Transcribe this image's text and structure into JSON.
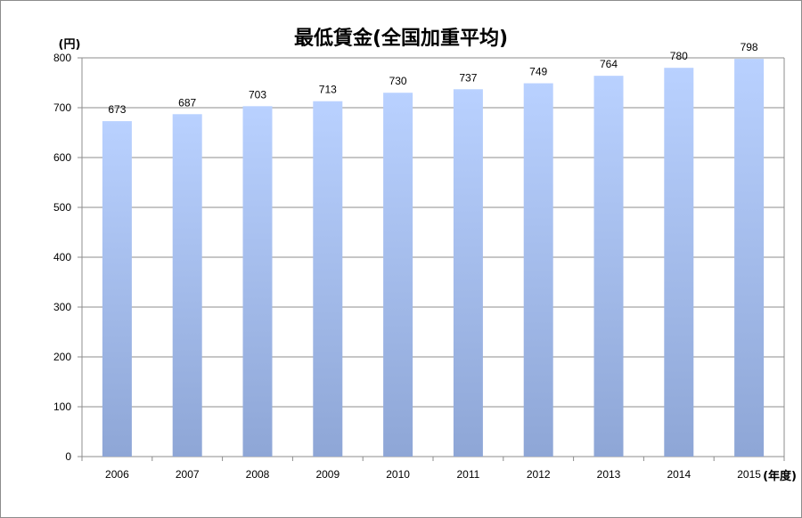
{
  "chart_data": {
    "type": "bar",
    "title": "最低賃金(全国加重平均)",
    "ylabel": "(円)",
    "xlabel": "(年度)",
    "categories": [
      "2006",
      "2007",
      "2008",
      "2009",
      "2010",
      "2011",
      "2012",
      "2013",
      "2014",
      "2015"
    ],
    "values": [
      673,
      687,
      703,
      713,
      730,
      737,
      749,
      764,
      780,
      798
    ],
    "ylim": [
      0,
      800
    ],
    "yticks": [
      0,
      100,
      200,
      300,
      400,
      500,
      600,
      700,
      800
    ],
    "grid": true,
    "legend": "none",
    "colors": {
      "bar_top": "#b9d1ff",
      "bar_bottom": "#8ea6d6",
      "grid": "#8c8c8c"
    }
  }
}
